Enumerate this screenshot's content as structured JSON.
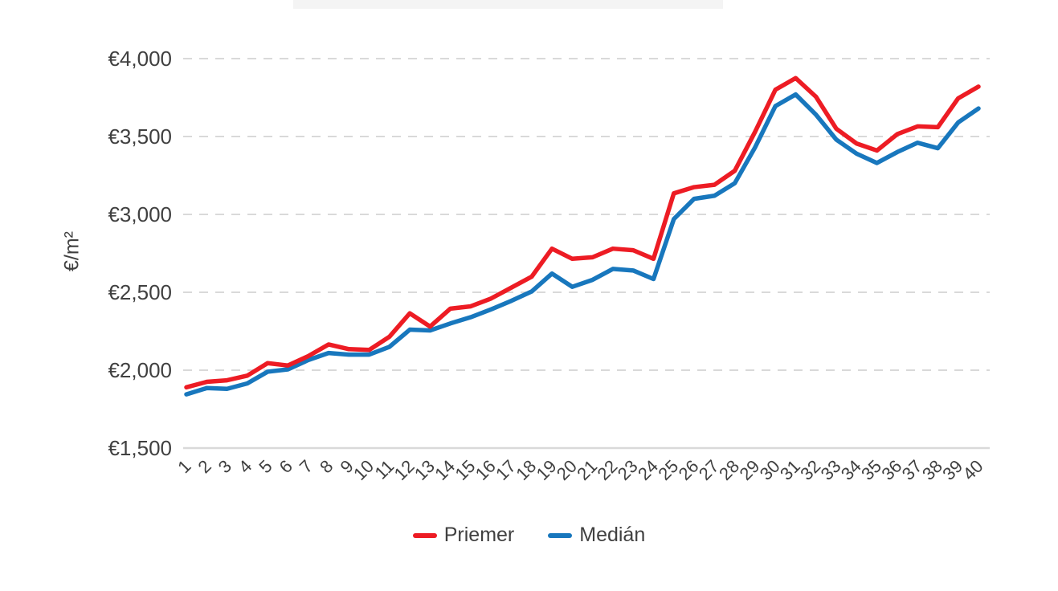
{
  "window": {
    "background": "#ffffff"
  },
  "title_placeholder": {
    "text": ""
  },
  "chart_data": {
    "type": "line",
    "title": "",
    "ylabel": "€/m²",
    "xlabel": "",
    "ylim": [
      1500,
      4000
    ],
    "grid": "horizontal-dashed",
    "legend_position": "bottom-center",
    "colors": {
      "text": "#404040",
      "gridline": "#d9d9d9",
      "baseline": "#d9d9d9"
    },
    "y_ticks": [
      {
        "value": 4000,
        "label": "€4,000"
      },
      {
        "value": 3500,
        "label": "€3,500"
      },
      {
        "value": 3000,
        "label": "€3,000"
      },
      {
        "value": 2500,
        "label": "€2,500"
      },
      {
        "value": 2000,
        "label": "€2,000"
      },
      {
        "value": 1500,
        "label": "€1,500"
      }
    ],
    "x": [
      1,
      2,
      3,
      4,
      5,
      6,
      7,
      8,
      9,
      10,
      11,
      12,
      13,
      14,
      15,
      16,
      17,
      18,
      19,
      20,
      21,
      22,
      23,
      24,
      25,
      26,
      27,
      28,
      29,
      30,
      31,
      32,
      33,
      34,
      35,
      36,
      37,
      38,
      39,
      40
    ],
    "series": [
      {
        "name": "Priemer",
        "color": "#ed1c24",
        "values": [
          1890,
          1925,
          1935,
          1965,
          2045,
          2030,
          2090,
          2165,
          2135,
          2130,
          2215,
          2365,
          2280,
          2395,
          2410,
          2460,
          2530,
          2600,
          2780,
          2715,
          2725,
          2780,
          2770,
          2715,
          3135,
          3175,
          3190,
          3280,
          3530,
          3800,
          3875,
          3755,
          3550,
          3455,
          3410,
          3515,
          3565,
          3560,
          3745,
          3820
        ]
      },
      {
        "name": "Medián",
        "color": "#1877bd",
        "values": [
          1845,
          1885,
          1880,
          1915,
          1990,
          2005,
          2065,
          2110,
          2100,
          2100,
          2150,
          2260,
          2255,
          2300,
          2340,
          2390,
          2445,
          2505,
          2620,
          2535,
          2580,
          2650,
          2640,
          2585,
          2970,
          3100,
          3120,
          3200,
          3430,
          3695,
          3770,
          3640,
          3480,
          3390,
          3330,
          3400,
          3460,
          3425,
          3590,
          3680
        ]
      }
    ]
  }
}
